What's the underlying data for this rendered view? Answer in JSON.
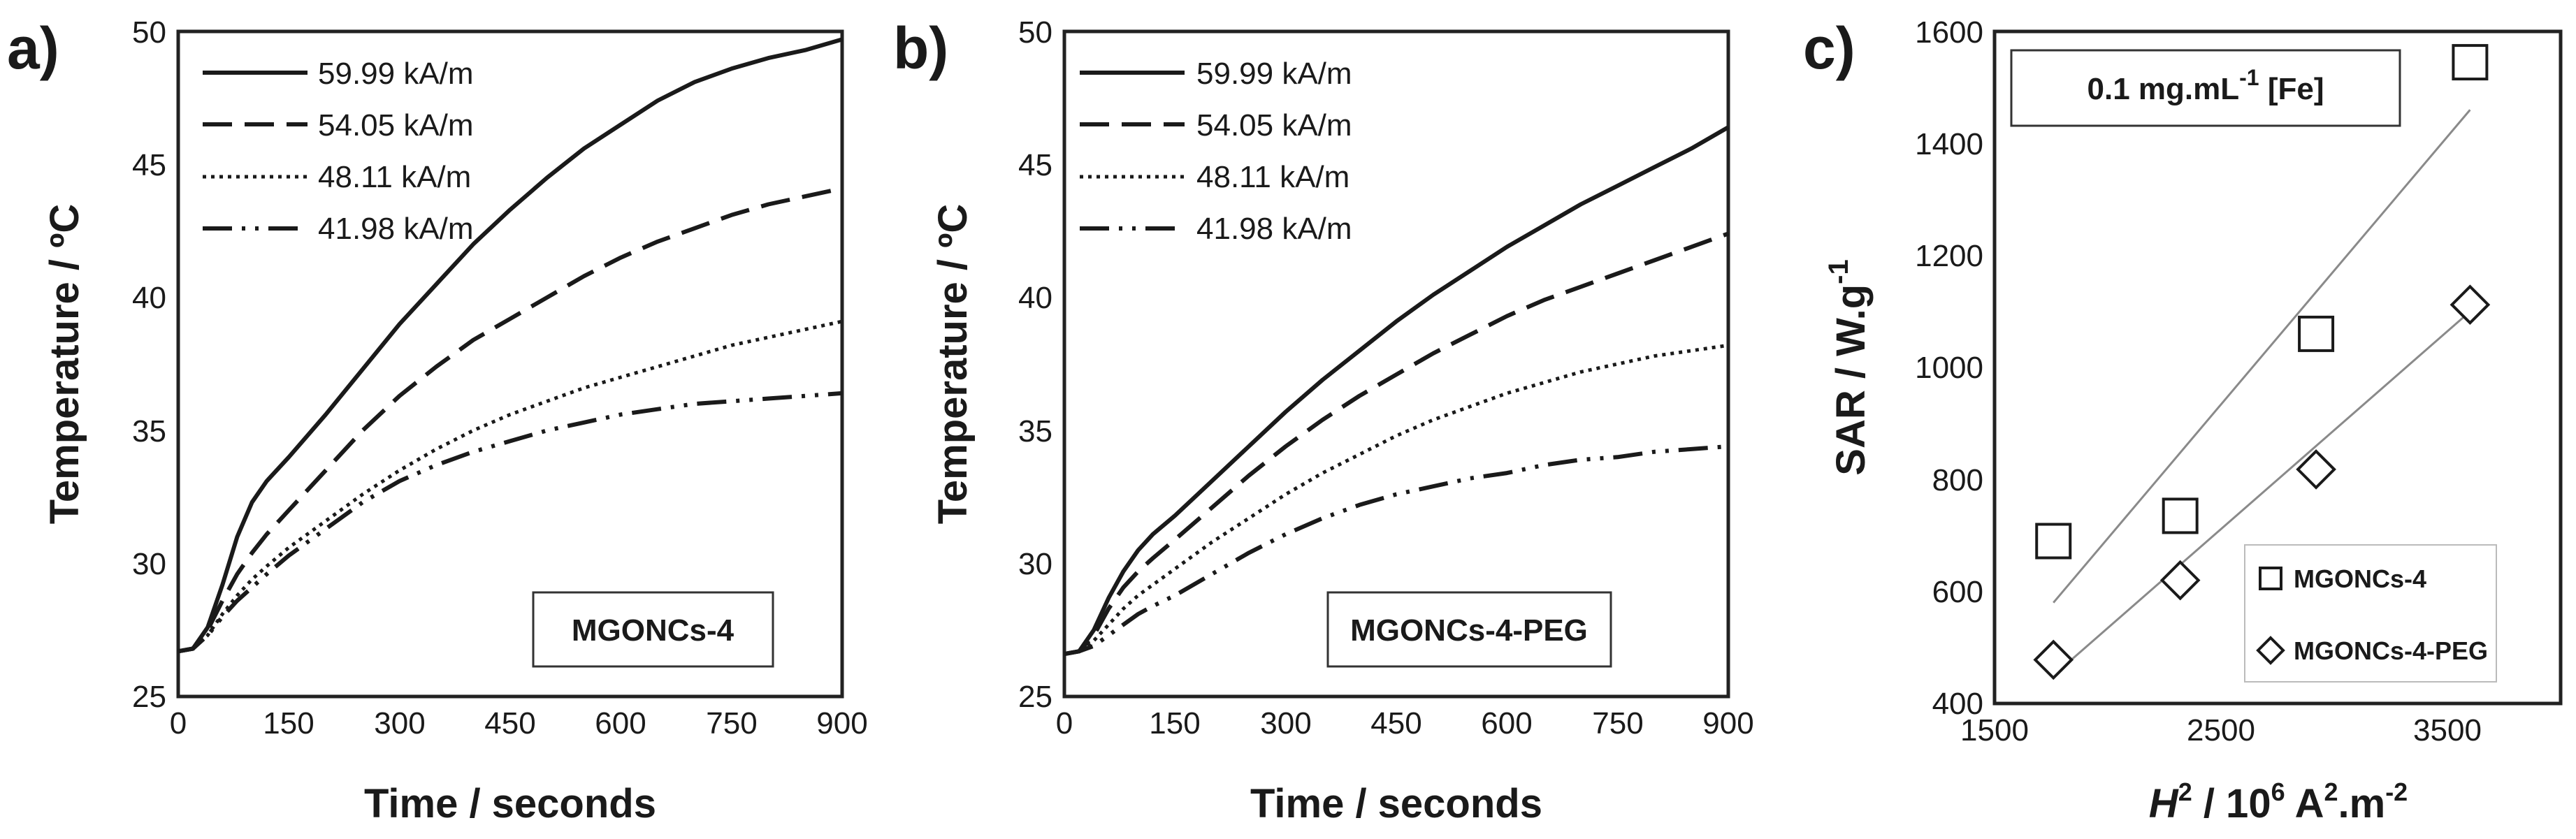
{
  "chart_data": [
    {
      "panel": "a)",
      "type": "line",
      "xlabel": "Time / seconds",
      "ylabel": "Temperature / ºC",
      "xlim": [
        0,
        900
      ],
      "ylim": [
        25,
        50
      ],
      "xticks": [
        "0",
        "150",
        "300",
        "450",
        "600",
        "750",
        "900"
      ],
      "yticks": [
        "25",
        "30",
        "35",
        "40",
        "45",
        "50"
      ],
      "annotation": "MGONCs-4",
      "series": [
        {
          "name": "59.99 kA/m",
          "style": "solid",
          "x": [
            0,
            20,
            40,
            60,
            80,
            100,
            120,
            150,
            200,
            250,
            300,
            350,
            400,
            450,
            500,
            550,
            600,
            650,
            700,
            750,
            800,
            850,
            900
          ],
          "y": [
            26.7,
            26.8,
            27.6,
            29.2,
            31.0,
            32.3,
            33.1,
            34.0,
            35.6,
            37.3,
            39.0,
            40.5,
            42.0,
            43.3,
            44.5,
            45.6,
            46.5,
            47.4,
            48.1,
            48.6,
            49.0,
            49.3,
            49.7
          ]
        },
        {
          "name": "54.05 kA/m",
          "style": "dashed",
          "x": [
            0,
            20,
            40,
            60,
            80,
            100,
            120,
            150,
            200,
            250,
            300,
            350,
            400,
            450,
            500,
            550,
            600,
            650,
            700,
            750,
            800,
            850,
            900
          ],
          "y": [
            26.7,
            26.8,
            27.5,
            28.6,
            29.6,
            30.4,
            31.1,
            32.0,
            33.5,
            35.0,
            36.3,
            37.4,
            38.4,
            39.2,
            40.0,
            40.8,
            41.5,
            42.1,
            42.6,
            43.1,
            43.5,
            43.8,
            44.1
          ]
        },
        {
          "name": "48.11 kA/m",
          "style": "dotted",
          "x": [
            0,
            20,
            40,
            60,
            80,
            100,
            120,
            150,
            200,
            250,
            300,
            350,
            400,
            450,
            500,
            550,
            600,
            650,
            700,
            750,
            800,
            850,
            900
          ],
          "y": [
            26.7,
            26.8,
            27.3,
            28.1,
            28.8,
            29.4,
            29.9,
            30.6,
            31.6,
            32.6,
            33.5,
            34.3,
            35.0,
            35.6,
            36.1,
            36.6,
            37.0,
            37.4,
            37.8,
            38.2,
            38.5,
            38.8,
            39.1
          ]
        },
        {
          "name": "41.98 kA/m",
          "style": "dashdot",
          "x": [
            0,
            20,
            40,
            60,
            80,
            100,
            120,
            150,
            200,
            250,
            300,
            350,
            400,
            450,
            500,
            550,
            600,
            650,
            700,
            750,
            800,
            850,
            900
          ],
          "y": [
            26.7,
            26.8,
            27.3,
            28.0,
            28.6,
            29.1,
            29.6,
            30.3,
            31.3,
            32.3,
            33.1,
            33.7,
            34.2,
            34.6,
            35.0,
            35.3,
            35.6,
            35.8,
            36.0,
            36.1,
            36.2,
            36.3,
            36.4
          ]
        }
      ]
    },
    {
      "panel": "b)",
      "type": "line",
      "xlabel": "Time / seconds",
      "ylabel": "Temperature / ºC",
      "xlim": [
        0,
        900
      ],
      "ylim": [
        25,
        50
      ],
      "xticks": [
        "0",
        "150",
        "300",
        "450",
        "600",
        "750",
        "900"
      ],
      "yticks": [
        "25",
        "30",
        "35",
        "40",
        "45",
        "50"
      ],
      "annotation": "MGONCs-4-PEG",
      "series": [
        {
          "name": "59.99 kA/m",
          "style": "solid",
          "x": [
            0,
            20,
            40,
            60,
            80,
            100,
            120,
            150,
            200,
            250,
            300,
            350,
            400,
            450,
            500,
            550,
            600,
            650,
            700,
            750,
            800,
            850,
            900
          ],
          "y": [
            26.6,
            26.7,
            27.5,
            28.7,
            29.7,
            30.5,
            31.1,
            31.8,
            33.1,
            34.4,
            35.7,
            36.9,
            38.0,
            39.1,
            40.1,
            41.0,
            41.9,
            42.7,
            43.5,
            44.2,
            44.9,
            45.6,
            46.4
          ]
        },
        {
          "name": "54.05 kA/m",
          "style": "dashed",
          "x": [
            0,
            20,
            40,
            60,
            80,
            100,
            120,
            150,
            200,
            250,
            300,
            350,
            400,
            450,
            500,
            550,
            600,
            650,
            700,
            750,
            800,
            850,
            900
          ],
          "y": [
            26.6,
            26.7,
            27.3,
            28.3,
            29.1,
            29.7,
            30.2,
            30.9,
            32.1,
            33.3,
            34.4,
            35.4,
            36.3,
            37.1,
            37.9,
            38.6,
            39.3,
            39.9,
            40.4,
            40.9,
            41.4,
            41.9,
            42.4
          ]
        },
        {
          "name": "48.11 kA/m",
          "style": "dotted",
          "x": [
            0,
            20,
            40,
            60,
            80,
            100,
            120,
            150,
            200,
            250,
            300,
            350,
            400,
            450,
            500,
            550,
            600,
            650,
            700,
            750,
            800,
            850,
            900
          ],
          "y": [
            26.6,
            26.7,
            27.1,
            27.7,
            28.3,
            28.8,
            29.2,
            29.8,
            30.8,
            31.7,
            32.6,
            33.4,
            34.1,
            34.8,
            35.4,
            35.9,
            36.4,
            36.8,
            37.2,
            37.5,
            37.8,
            38.0,
            38.2
          ]
        },
        {
          "name": "41.98 kA/m",
          "style": "dashdot",
          "x": [
            0,
            20,
            40,
            60,
            80,
            100,
            120,
            150,
            200,
            250,
            300,
            350,
            400,
            450,
            500,
            550,
            600,
            650,
            700,
            750,
            800,
            850,
            900
          ],
          "y": [
            26.6,
            26.7,
            26.9,
            27.3,
            27.7,
            28.1,
            28.4,
            28.8,
            29.6,
            30.4,
            31.1,
            31.7,
            32.2,
            32.6,
            32.9,
            33.2,
            33.4,
            33.7,
            33.9,
            34.0,
            34.2,
            34.3,
            34.4
          ]
        }
      ]
    },
    {
      "panel": "c)",
      "type": "scatter",
      "xlabel_italic": "H",
      "xlabel_sup": "2",
      "xlabel_rest1": " / 10",
      "xlabel_sup2": "6",
      "xlabel_rest2": " A",
      "xlabel_sup3": "2",
      "xlabel_rest3": ".m",
      "xlabel_sup4": "-2",
      "ylabel_main": "SAR / W.g",
      "ylabel_sup": "-1",
      "xlim": [
        1500,
        4000
      ],
      "ylim": [
        400,
        1600
      ],
      "xticks": [
        "1500",
        "2500",
        "3500"
      ],
      "xtick_values": [
        1500,
        2500,
        3500
      ],
      "yticks": [
        "400",
        "600",
        "800",
        "1000",
        "1200",
        "1400",
        "1600"
      ],
      "concentration_main": "0.1 mg.mL",
      "concentration_sup": "-1",
      "concentration_rest": " [Fe]",
      "series": [
        {
          "name": "MGONCs-4",
          "marker": "square",
          "x": [
            1760,
            2320,
            2920,
            3600
          ],
          "y": [
            690,
            735,
            1060,
            1545
          ],
          "fit": {
            "x": [
              1760,
              3600
            ],
            "y": [
              580,
              1460
            ]
          }
        },
        {
          "name": "MGONCs-4-PEG",
          "marker": "diamond",
          "x": [
            1760,
            2320,
            2920,
            3600
          ],
          "y": [
            478,
            620,
            818,
            1112
          ],
          "fit": {
            "x": [
              1760,
              3600
            ],
            "y": [
              450,
              1100
            ]
          }
        }
      ]
    }
  ],
  "colors": {
    "ink": "#1a1a1a",
    "fit_line": "#8a8a8a",
    "frame": "#222222"
  }
}
